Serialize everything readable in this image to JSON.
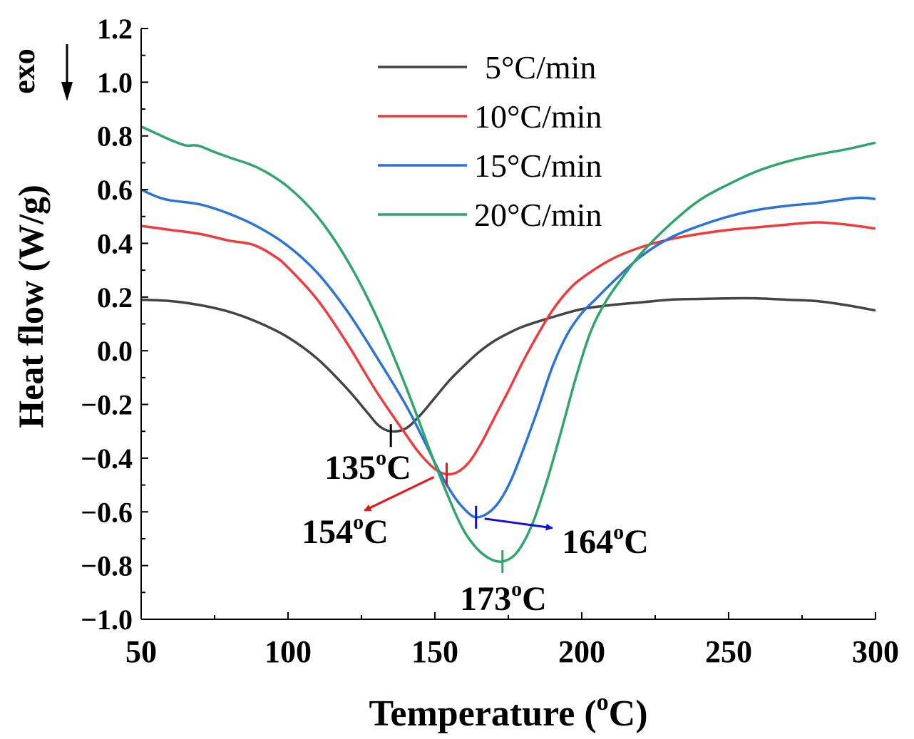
{
  "chart_data": {
    "type": "line",
    "title": "",
    "xlabel": "Temperature (",
    "xlabel_sup": "o",
    "xlabel_end": "C)",
    "ylabel": "Heat flow (W/g)",
    "exo_label": "exo",
    "xlim": [
      50,
      300
    ],
    "ylim": [
      -1.0,
      1.2
    ],
    "xticks": [
      50,
      100,
      150,
      200,
      250,
      300
    ],
    "yticks": [
      1.2,
      1.0,
      0.8,
      0.6,
      0.4,
      0.2,
      0.0,
      -0.2,
      -0.4,
      -0.6,
      -0.8,
      -1.0
    ],
    "xtick_labels": [
      "50",
      "100",
      "150",
      "200",
      "250",
      "300"
    ],
    "ytick_labels": [
      "1.2",
      "1.0",
      "0.8",
      "0.6",
      "0.4",
      "0.2",
      "0.0",
      "−0.2",
      "−0.4",
      "−0.6",
      "−0.8",
      "−1.0"
    ],
    "grid": false,
    "legend_position": "top-center",
    "series": [
      {
        "name": "5°C/min",
        "color": "#444444",
        "points": [
          [
            50,
            0.19
          ],
          [
            60,
            0.185
          ],
          [
            70,
            0.17
          ],
          [
            80,
            0.145
          ],
          [
            90,
            0.105
          ],
          [
            100,
            0.05
          ],
          [
            110,
            -0.03
          ],
          [
            120,
            -0.14
          ],
          [
            127,
            -0.23
          ],
          [
            131,
            -0.28
          ],
          [
            135,
            -0.3
          ],
          [
            140,
            -0.29
          ],
          [
            145,
            -0.24
          ],
          [
            150,
            -0.175
          ],
          [
            155,
            -0.11
          ],
          [
            160,
            -0.055
          ],
          [
            165,
            -0.005
          ],
          [
            170,
            0.035
          ],
          [
            175,
            0.065
          ],
          [
            180,
            0.09
          ],
          [
            190,
            0.125
          ],
          [
            200,
            0.155
          ],
          [
            210,
            0.17
          ],
          [
            220,
            0.18
          ],
          [
            230,
            0.19
          ],
          [
            240,
            0.193
          ],
          [
            250,
            0.195
          ],
          [
            260,
            0.195
          ],
          [
            270,
            0.19
          ],
          [
            280,
            0.185
          ],
          [
            290,
            0.17
          ],
          [
            300,
            0.15
          ]
        ]
      },
      {
        "name": "10°C/min",
        "color": "#ef3b3b",
        "points": [
          [
            50,
            0.465
          ],
          [
            60,
            0.45
          ],
          [
            70,
            0.435
          ],
          [
            80,
            0.41
          ],
          [
            88,
            0.395
          ],
          [
            95,
            0.355
          ],
          [
            100,
            0.31
          ],
          [
            110,
            0.19
          ],
          [
            120,
            0.03
          ],
          [
            130,
            -0.15
          ],
          [
            140,
            -0.31
          ],
          [
            145,
            -0.385
          ],
          [
            150,
            -0.44
          ],
          [
            154,
            -0.46
          ],
          [
            158,
            -0.45
          ],
          [
            162,
            -0.41
          ],
          [
            166,
            -0.34
          ],
          [
            170,
            -0.255
          ],
          [
            175,
            -0.15
          ],
          [
            180,
            -0.04
          ],
          [
            185,
            0.06
          ],
          [
            190,
            0.15
          ],
          [
            195,
            0.22
          ],
          [
            200,
            0.27
          ],
          [
            210,
            0.34
          ],
          [
            220,
            0.385
          ],
          [
            230,
            0.415
          ],
          [
            240,
            0.435
          ],
          [
            250,
            0.45
          ],
          [
            260,
            0.46
          ],
          [
            270,
            0.47
          ],
          [
            280,
            0.478
          ],
          [
            290,
            0.47
          ],
          [
            300,
            0.455
          ]
        ]
      },
      {
        "name": "15°C/min",
        "color": "#2c73d8",
        "points": [
          [
            50,
            0.6
          ],
          [
            55,
            0.575
          ],
          [
            60,
            0.56
          ],
          [
            70,
            0.545
          ],
          [
            80,
            0.51
          ],
          [
            90,
            0.46
          ],
          [
            100,
            0.39
          ],
          [
            110,
            0.29
          ],
          [
            120,
            0.15
          ],
          [
            130,
            -0.02
          ],
          [
            140,
            -0.2
          ],
          [
            147,
            -0.35
          ],
          [
            152,
            -0.46
          ],
          [
            157,
            -0.55
          ],
          [
            161,
            -0.6
          ],
          [
            164,
            -0.62
          ],
          [
            168,
            -0.605
          ],
          [
            172,
            -0.56
          ],
          [
            176,
            -0.48
          ],
          [
            180,
            -0.37
          ],
          [
            185,
            -0.22
          ],
          [
            190,
            -0.06
          ],
          [
            195,
            0.06
          ],
          [
            200,
            0.14
          ],
          [
            205,
            0.195
          ],
          [
            210,
            0.25
          ],
          [
            220,
            0.35
          ],
          [
            230,
            0.42
          ],
          [
            240,
            0.465
          ],
          [
            250,
            0.5
          ],
          [
            260,
            0.525
          ],
          [
            270,
            0.54
          ],
          [
            280,
            0.55
          ],
          [
            290,
            0.565
          ],
          [
            295,
            0.57
          ],
          [
            300,
            0.565
          ]
        ]
      },
      {
        "name": "20°C/min",
        "color": "#2ea56a",
        "points": [
          [
            50,
            0.835
          ],
          [
            55,
            0.81
          ],
          [
            60,
            0.785
          ],
          [
            65,
            0.765
          ],
          [
            68,
            0.765
          ],
          [
            70,
            0.762
          ],
          [
            75,
            0.74
          ],
          [
            80,
            0.72
          ],
          [
            90,
            0.68
          ],
          [
            100,
            0.61
          ],
          [
            110,
            0.5
          ],
          [
            120,
            0.34
          ],
          [
            130,
            0.13
          ],
          [
            140,
            -0.13
          ],
          [
            150,
            -0.42
          ],
          [
            158,
            -0.63
          ],
          [
            163,
            -0.72
          ],
          [
            168,
            -0.77
          ],
          [
            173,
            -0.785
          ],
          [
            178,
            -0.75
          ],
          [
            183,
            -0.65
          ],
          [
            188,
            -0.49
          ],
          [
            193,
            -0.3
          ],
          [
            198,
            -0.1
          ],
          [
            203,
            0.07
          ],
          [
            208,
            0.18
          ],
          [
            213,
            0.26
          ],
          [
            220,
            0.36
          ],
          [
            230,
            0.47
          ],
          [
            240,
            0.56
          ],
          [
            250,
            0.62
          ],
          [
            260,
            0.67
          ],
          [
            270,
            0.705
          ],
          [
            280,
            0.73
          ],
          [
            290,
            0.75
          ],
          [
            300,
            0.775
          ]
        ]
      }
    ],
    "peaks": [
      {
        "label": "135",
        "sup": "o",
        "unit": "C",
        "x": 135,
        "y": -0.3,
        "color": "#000000",
        "arrow": false
      },
      {
        "label": "154",
        "sup": "o",
        "unit": "C",
        "x": 154,
        "y": -0.46,
        "color": "#ef1010",
        "arrow": true,
        "arrow_to": [
          126,
          -0.595
        ]
      },
      {
        "label": "164",
        "sup": "o",
        "unit": "C",
        "x": 164,
        "y": -0.62,
        "color": "#1010dd",
        "arrow": true,
        "arrow_to": [
          190,
          -0.66
        ]
      },
      {
        "label": "173",
        "sup": "o",
        "unit": "C",
        "x": 173,
        "y": -0.785,
        "color": "#2ea56a",
        "arrow": false
      }
    ]
  }
}
